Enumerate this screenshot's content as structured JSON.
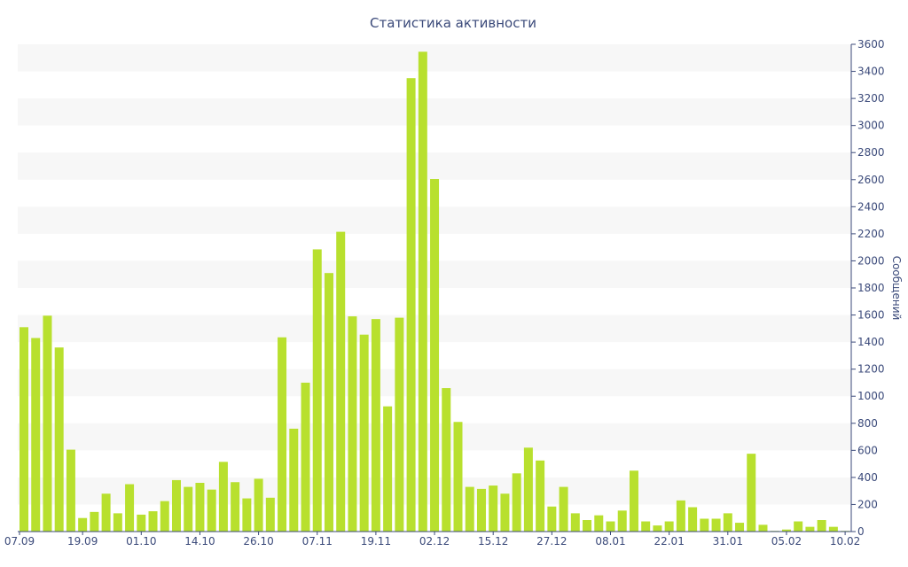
{
  "chart_data": {
    "type": "bar",
    "title": "Статистика активности",
    "xlabel": "",
    "ylabel": "Сообщений",
    "ylim": [
      0,
      3600
    ],
    "ytick_step": 200,
    "grid": "horizontal bands",
    "legend": "none",
    "bar_color": "#b8e02e",
    "band_color": "#f7f7f7",
    "text_color": "#3b4a7a",
    "axis_color": "#3b4a7a",
    "x_tick_labels": [
      {
        "index": 0,
        "label": "07.09"
      },
      {
        "index": 5,
        "label": "19.09"
      },
      {
        "index": 10,
        "label": "01.10"
      },
      {
        "index": 15,
        "label": "14.10"
      },
      {
        "index": 20,
        "label": "26.10"
      },
      {
        "index": 25,
        "label": "07.11"
      },
      {
        "index": 30,
        "label": "19.11"
      },
      {
        "index": 35,
        "label": "02.12"
      },
      {
        "index": 40,
        "label": "15.12"
      },
      {
        "index": 45,
        "label": "27.12"
      },
      {
        "index": 50,
        "label": "08.01"
      },
      {
        "index": 55,
        "label": "22.01"
      },
      {
        "index": 60,
        "label": "31.01"
      },
      {
        "index": 65,
        "label": "05.02"
      },
      {
        "index": 70,
        "label": "10.02"
      }
    ],
    "values": [
      1510,
      1430,
      1595,
      1360,
      605,
      100,
      145,
      280,
      135,
      350,
      125,
      150,
      225,
      380,
      330,
      360,
      310,
      515,
      365,
      245,
      390,
      250,
      1435,
      760,
      1100,
      2085,
      1910,
      2215,
      1590,
      1455,
      1570,
      925,
      1580,
      3350,
      3545,
      2605,
      1060,
      810,
      330,
      315,
      340,
      280,
      430,
      620,
      525,
      185,
      330,
      135,
      85,
      120,
      75,
      155,
      450,
      75,
      45,
      75,
      230,
      180,
      95,
      95,
      135,
      65,
      575,
      50,
      5,
      15,
      75,
      35,
      85,
      35,
      5
    ]
  }
}
